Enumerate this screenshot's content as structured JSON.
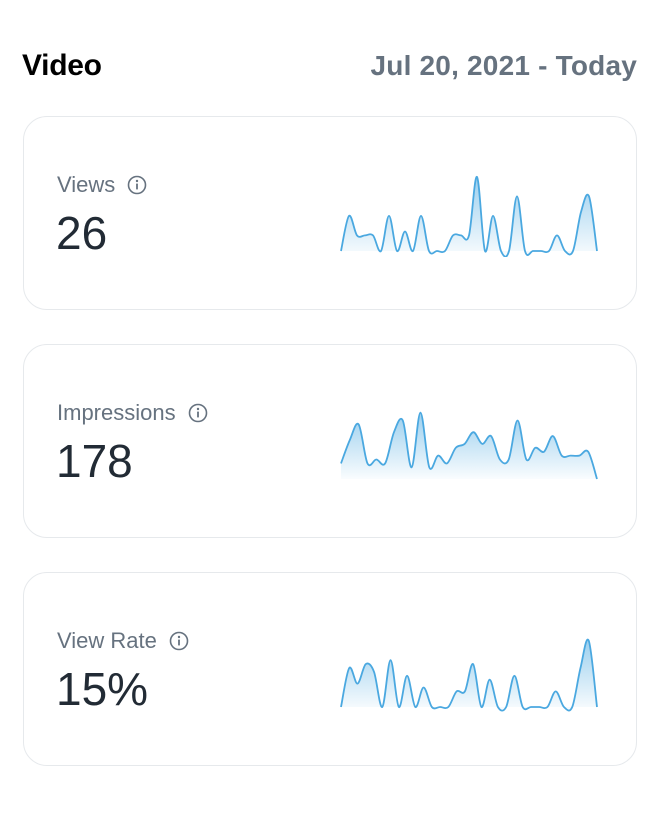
{
  "header": {
    "title": "Video",
    "date_range": "Jul 20, 2021 - Today"
  },
  "colors": {
    "accent": "#4aa8e0",
    "label": "#66727f",
    "value": "#222b35",
    "border": "#e6e9ec"
  },
  "cards": [
    {
      "label": "Views",
      "value": "26",
      "icon": "info-icon",
      "series": [
        0,
        0.45,
        0.2,
        0.2,
        0.2,
        0,
        0.45,
        0,
        0.25,
        0,
        0.45,
        0,
        0,
        0,
        0.2,
        0.2,
        0.2,
        0.95,
        0,
        0.45,
        0,
        0,
        0.7,
        0,
        0,
        0,
        0,
        0.2,
        0,
        0,
        0.5,
        0.7,
        0
      ]
    },
    {
      "label": "Impressions",
      "value": "178",
      "icon": "info-icon",
      "series": [
        0.2,
        0.5,
        0.7,
        0.2,
        0.25,
        0.2,
        0.6,
        0.75,
        0.15,
        0.85,
        0.15,
        0.3,
        0.2,
        0.4,
        0.45,
        0.6,
        0.45,
        0.55,
        0.25,
        0.25,
        0.75,
        0.25,
        0.4,
        0.35,
        0.55,
        0.3,
        0.3,
        0.3,
        0.35,
        0
      ]
    },
    {
      "label": "View Rate",
      "value": "15%",
      "icon": "info-icon",
      "series": [
        0,
        0.5,
        0.3,
        0.55,
        0.45,
        0,
        0.6,
        0,
        0.4,
        0,
        0.25,
        0,
        0,
        0,
        0.2,
        0.2,
        0.55,
        0,
        0.35,
        0,
        0,
        0.4,
        0,
        0,
        0,
        0,
        0.2,
        0,
        0,
        0.5,
        0.85,
        0
      ]
    }
  ]
}
